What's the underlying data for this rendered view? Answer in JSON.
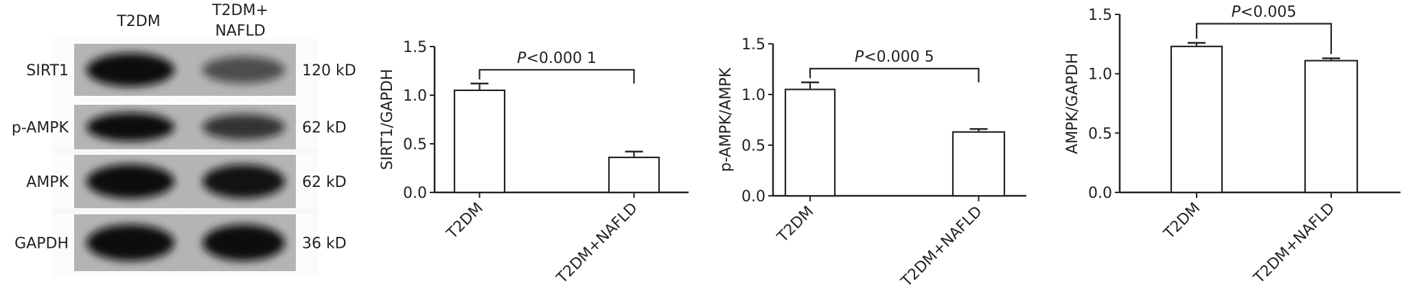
{
  "blot": {
    "lanes": [
      "T2DM",
      "T2DM+\nNAFLD"
    ],
    "lane_label_1": "T2DM",
    "lane_label_2a": "T2DM+",
    "lane_label_2b": "NAFLD",
    "rows": [
      {
        "protein": "SIRT1",
        "size": "120 kD",
        "intensity": [
          1.0,
          0.4
        ]
      },
      {
        "protein": "p-AMPK",
        "size": "62 kD",
        "intensity": [
          1.0,
          0.65
        ]
      },
      {
        "protein": "AMPK",
        "size": "62 kD",
        "intensity": [
          1.0,
          0.95
        ]
      },
      {
        "protein": "GAPDH",
        "size": "36 kD",
        "intensity": [
          1.0,
          1.0
        ]
      }
    ]
  },
  "chart_data": [
    {
      "type": "bar",
      "categories": [
        "T2DM",
        "T2DM+NAFLD"
      ],
      "values": [
        1.05,
        0.36
      ],
      "errors": [
        0.07,
        0.06
      ],
      "ylabel": "SIRT1/GAPDH",
      "ylim": [
        0,
        1.5
      ],
      "yticks": [
        "0.0",
        "0.5",
        "1.0",
        "1.5"
      ],
      "annotation": {
        "p": "P",
        "text": "<0.000 1"
      }
    },
    {
      "type": "bar",
      "categories": [
        "T2DM",
        "T2DM+NAFLD"
      ],
      "values": [
        1.05,
        0.63
      ],
      "errors": [
        0.07,
        0.03
      ],
      "ylabel": "p-AMPK/AMPK",
      "ylim": [
        0,
        1.5
      ],
      "yticks": [
        "0.0",
        "0.5",
        "1.0",
        "1.5"
      ],
      "annotation": {
        "p": "P",
        "text": "<0.000 5"
      }
    },
    {
      "type": "bar",
      "categories": [
        "T2DM",
        "T2DM+NAFLD"
      ],
      "values": [
        1.23,
        1.11
      ],
      "errors": [
        0.03,
        0.02
      ],
      "ylabel": "AMPK/GAPDH",
      "ylim": [
        0,
        1.5
      ],
      "yticks": [
        "0.0",
        "0.5",
        "1.0",
        "1.5"
      ],
      "annotation": {
        "p": "P",
        "text": "<0.005"
      }
    }
  ]
}
